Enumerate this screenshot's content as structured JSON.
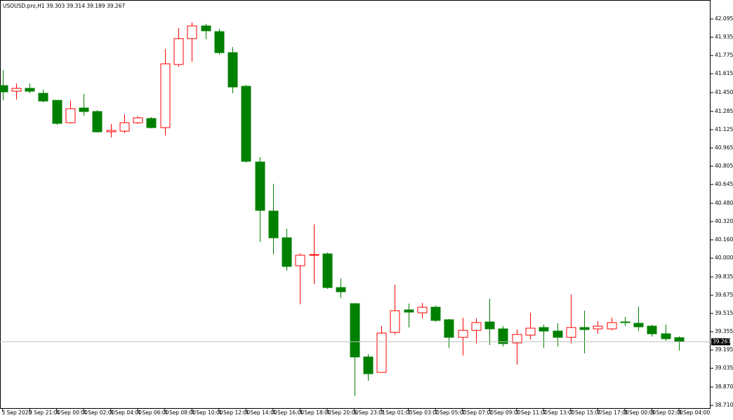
{
  "chart_data": {
    "type": "candlestick",
    "title": "USOUSD.pro,H1",
    "categories": [
      "3 Sep 2020",
      null,
      "3 Sep 21:00",
      null,
      "4 Sep 00:00",
      null,
      "4 Sep 02:00",
      null,
      "4 Sep 04:00",
      null,
      "4 Sep 06:00",
      null,
      "4 Sep 08:00",
      null,
      "4 Sep 10:00",
      null,
      "4 Sep 12:00",
      null,
      "4 Sep 14:00",
      null,
      "4 Sep 16:00",
      null,
      "4 Sep 18:00",
      null,
      "4 Sep 20:00",
      null,
      "6 Sep 23:01",
      null,
      "7 Sep 01:00",
      null,
      "7 Sep 03:00",
      null,
      "7 Sep 05:00",
      null,
      "7 Sep 07:00",
      null,
      "7 Sep 09:00",
      null,
      "7 Sep 11:00",
      null,
      "7 Sep 13:00",
      null,
      "7 Sep 15:00",
      null,
      "7 Sep 17:00",
      null,
      "8 Sep 00:00",
      null,
      "8 Sep 02:00",
      null,
      "8 Sep 04:00"
    ],
    "open": [
      41.511,
      41.462,
      41.487,
      41.444,
      41.382,
      41.186,
      41.315,
      41.284,
      41.106,
      41.112,
      41.186,
      41.223,
      41.143,
      41.696,
      41.923,
      42.034,
      41.984,
      41.8,
      41.505,
      40.842,
      40.412,
      40.178,
      39.933,
      40.025,
      40.037,
      39.742,
      39.601,
      39.134,
      38.999,
      39.349,
      39.546,
      39.521,
      39.57,
      39.46,
      39.306,
      39.367,
      39.441,
      39.38,
      39.257,
      39.325,
      39.392,
      39.361,
      39.306,
      39.392,
      39.38,
      39.38,
      39.441,
      39.429,
      39.404,
      39.337,
      39.303
    ],
    "high": [
      41.647,
      41.53,
      41.53,
      41.475,
      41.382,
      41.382,
      41.438,
      41.296,
      41.174,
      41.26,
      41.241,
      41.235,
      41.831,
      42.015,
      42.064,
      42.052,
      42.009,
      41.849,
      41.518,
      40.885,
      40.651,
      40.258,
      40.043,
      40.295,
      40.049,
      39.822,
      39.607,
      39.159,
      39.404,
      39.767,
      39.601,
      39.607,
      39.583,
      39.466,
      39.478,
      39.472,
      39.644,
      39.404,
      39.374,
      39.521,
      39.417,
      39.429,
      39.681,
      39.54,
      39.447,
      39.478,
      39.484,
      39.576,
      39.417,
      39.417,
      39.314
    ],
    "low": [
      41.382,
      41.389,
      41.444,
      41.364,
      41.167,
      41.18,
      41.247,
      41.1,
      41.057,
      41.094,
      41.174,
      41.137,
      41.075,
      41.677,
      41.72,
      41.917,
      41.782,
      41.444,
      40.836,
      40.142,
      40.031,
      39.89,
      39.595,
      39.773,
      39.73,
      39.65,
      38.79,
      38.925,
      38.999,
      39.331,
      39.392,
      39.472,
      39.441,
      39.214,
      39.146,
      39.251,
      39.239,
      39.226,
      39.067,
      39.288,
      39.214,
      39.226,
      39.251,
      39.165,
      39.337,
      39.368,
      39.404,
      39.362,
      39.312,
      39.276,
      39.189
    ],
    "close": [
      41.456,
      41.487,
      41.462,
      41.376,
      41.18,
      41.309,
      41.284,
      41.106,
      41.118,
      41.186,
      41.229,
      41.143,
      41.702,
      41.923,
      42.034,
      41.991,
      41.8,
      41.499,
      40.848,
      40.418,
      40.178,
      39.927,
      40.025,
      40.031,
      39.742,
      39.705,
      39.134,
      38.987,
      39.343,
      39.539,
      39.527,
      39.57,
      39.454,
      39.306,
      39.367,
      39.435,
      39.38,
      39.251,
      39.331,
      39.386,
      39.361,
      39.306,
      39.392,
      39.374,
      39.404,
      39.435,
      39.435,
      39.398,
      39.337,
      39.294,
      39.267
    ],
    "up_color": "#ff0000",
    "up_fill": "#ffffff",
    "down_color": "#008000",
    "price_line_color": "#c0c0c0",
    "ylim": [
      38.68,
      42.261
    ],
    "yticks": [
      42.095,
      41.935,
      41.775,
      41.615,
      {
        "value": 41.45,
        "label": "41.450"
      },
      41.285,
      41.125,
      40.965,
      40.805,
      40.645,
      {
        "value": 40.48,
        "label": "40.480"
      },
      {
        "value": 40.32,
        "label": "40.320"
      },
      {
        "value": 40.16,
        "label": "40.160"
      },
      {
        "value": 40,
        "label": "40.000"
      },
      39.835,
      39.675,
      39.515,
      39.355,
      39.195,
      39.035,
      {
        "value": 38.87,
        "label": "38.870"
      },
      {
        "value": 38.71,
        "label": "38.710"
      }
    ],
    "grid": false
  }
}
